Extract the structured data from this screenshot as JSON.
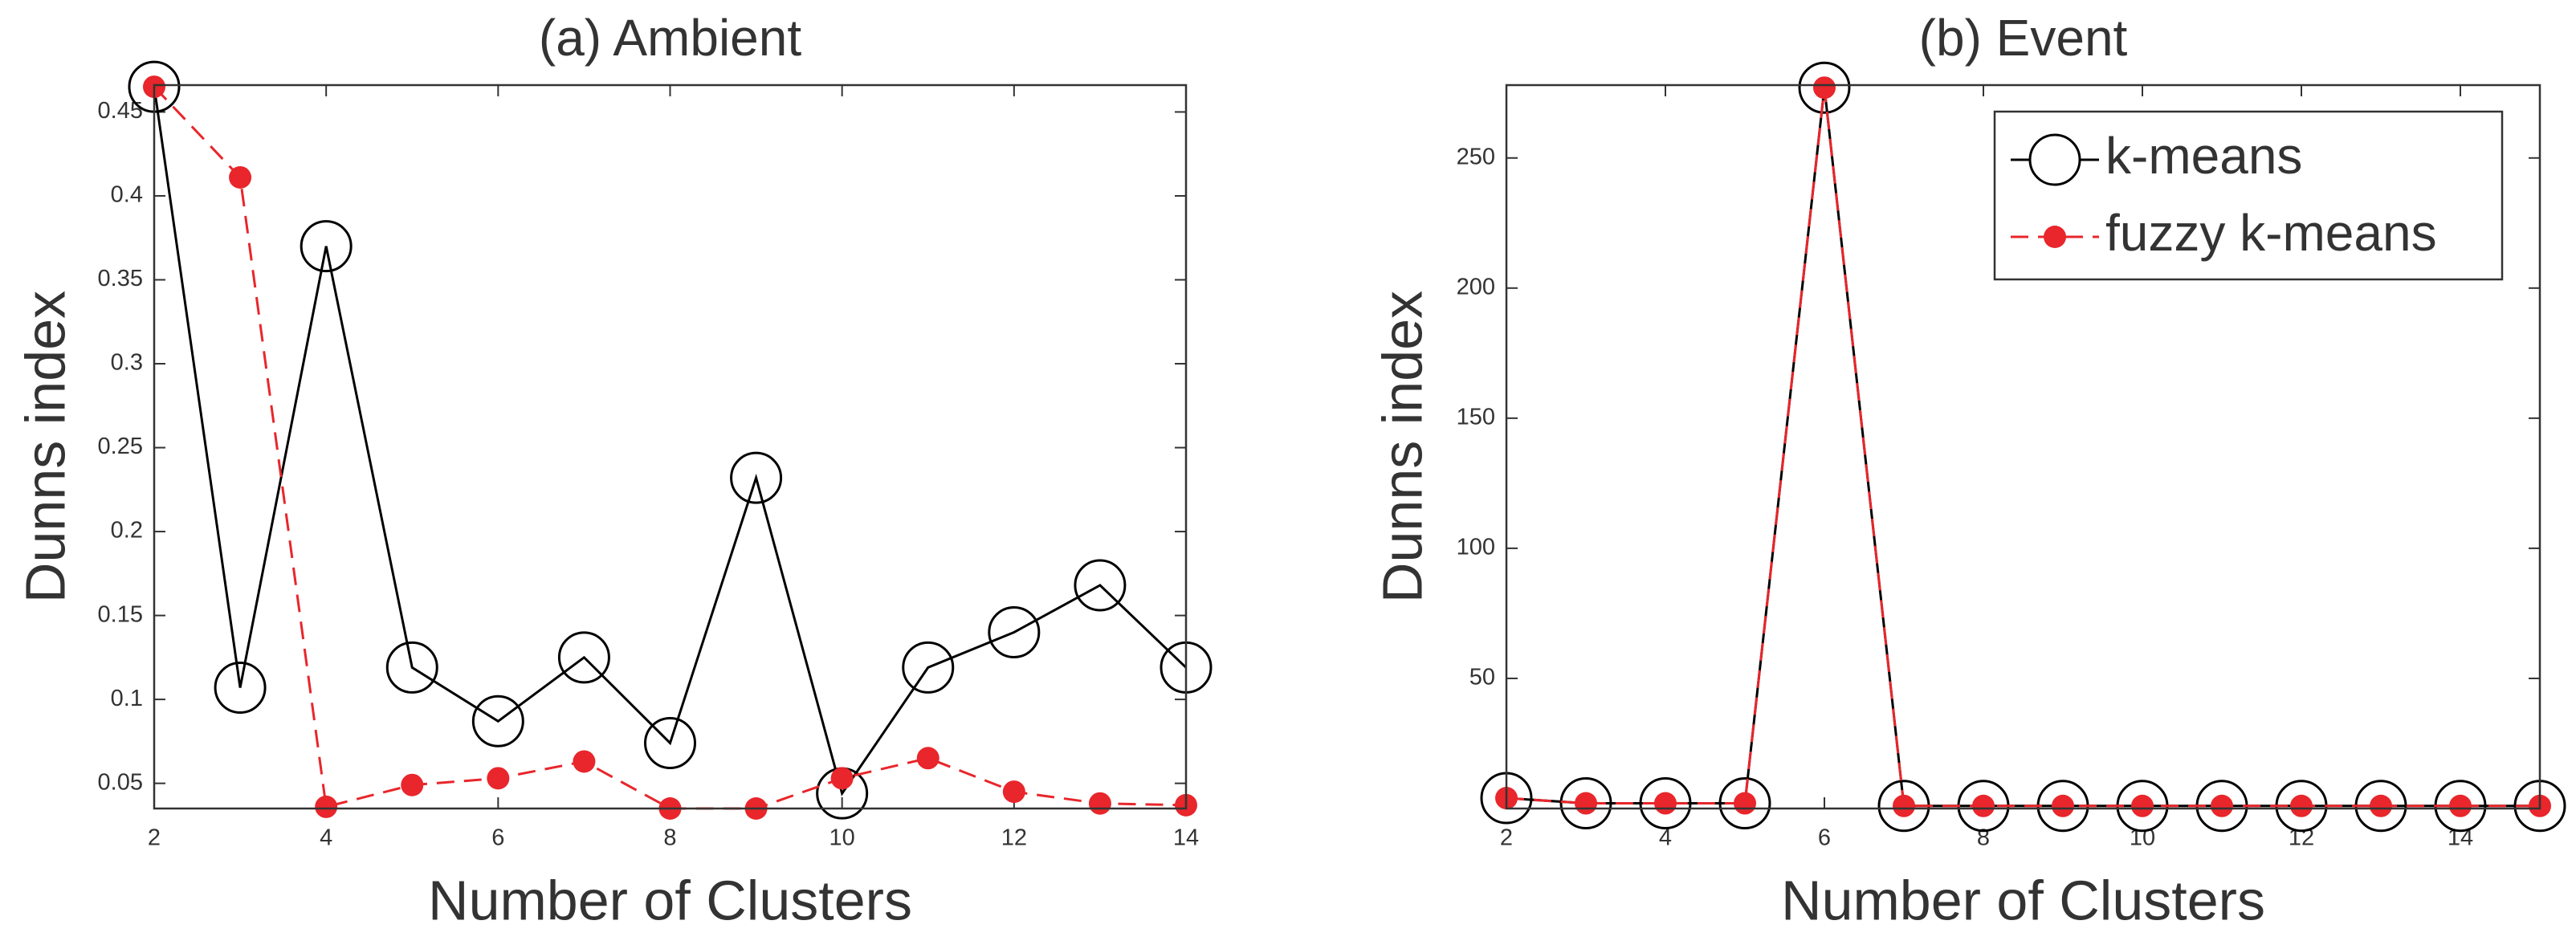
{
  "chart_data": [
    {
      "type": "line",
      "title": "(a) Ambient",
      "xlabel": "Number of Clusters",
      "ylabel": "Dunns index",
      "x": [
        2,
        3,
        4,
        5,
        6,
        7,
        8,
        9,
        10,
        11,
        12,
        13,
        14
      ],
      "xlim": [
        2,
        14
      ],
      "xticks": [
        2,
        4,
        6,
        8,
        10,
        12,
        14
      ],
      "ylim": [
        0.035,
        0.466
      ],
      "yticks": [
        0.05,
        0.1,
        0.15,
        0.2,
        0.25,
        0.3,
        0.35,
        0.4,
        0.45
      ],
      "series": [
        {
          "name": "k-means",
          "color": "#000000",
          "linestyle": "solid",
          "marker": "open-circle",
          "values": [
            0.465,
            0.107,
            0.37,
            0.119,
            0.087,
            0.125,
            0.074,
            0.232,
            0.044,
            0.119,
            0.14,
            0.168,
            0.119
          ]
        },
        {
          "name": "fuzzy k-means",
          "color": "#e8262b",
          "linestyle": "dashed",
          "marker": "dot",
          "values": [
            0.465,
            0.411,
            0.036,
            0.049,
            0.053,
            0.063,
            0.035,
            0.035,
            0.053,
            0.065,
            0.045,
            0.038,
            0.037
          ]
        }
      ]
    },
    {
      "type": "line",
      "title": "(b) Event",
      "xlabel": "Number of Clusters",
      "ylabel": "Dunns index",
      "x": [
        2,
        3,
        4,
        5,
        6,
        7,
        8,
        9,
        10,
        11,
        12,
        13,
        14,
        15
      ],
      "xlim": [
        2,
        15
      ],
      "xticks": [
        2,
        4,
        6,
        8,
        10,
        12,
        14
      ],
      "ylim": [
        0,
        278
      ],
      "yticks": [
        50,
        100,
        150,
        200,
        250
      ],
      "legend": "upper right",
      "series": [
        {
          "name": "k-means",
          "color": "#000000",
          "linestyle": "solid",
          "marker": "open-circle",
          "values": [
            4,
            2,
            2,
            2,
            277,
            1,
            1,
            1,
            1,
            1,
            1,
            1,
            1,
            1
          ]
        },
        {
          "name": "fuzzy k-means",
          "color": "#e8262b",
          "linestyle": "dashed",
          "marker": "dot",
          "values": [
            4,
            2,
            2,
            2,
            277,
            1,
            1,
            1,
            1,
            1,
            1,
            1,
            1,
            1
          ]
        }
      ]
    }
  ]
}
